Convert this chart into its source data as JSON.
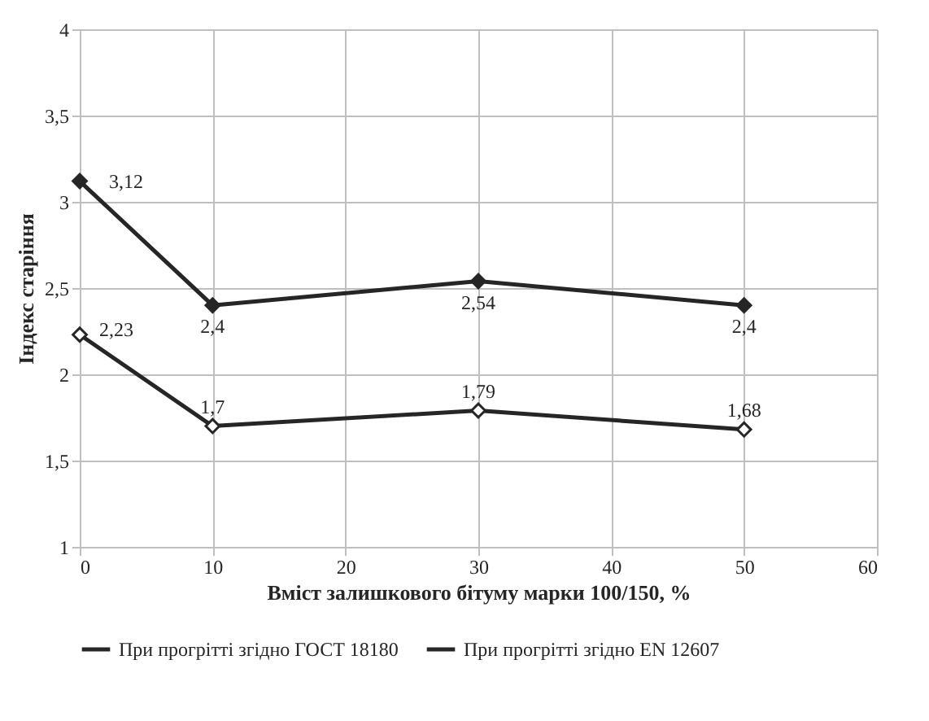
{
  "chart_data": {
    "type": "line",
    "xlabel": "Вміст  залишкового бітуму марки 100/150, %",
    "ylabel": "Індекс старіння",
    "x": [
      0,
      10,
      30,
      50
    ],
    "series": [
      {
        "name": "При прогрітті згідно ГОСТ 18180",
        "color": "#262626",
        "values": [
          2.23,
          1.7,
          1.79,
          1.68
        ],
        "value_labels": [
          "2,23",
          "1,7",
          "1,79",
          "1,68"
        ]
      },
      {
        "name": "При прогрітті згідно EN 12607",
        "color": "#262626",
        "values": [
          3.12,
          2.4,
          2.54,
          2.4
        ],
        "value_labels": [
          "3,12",
          "2,4",
          "2,54",
          "2,4"
        ]
      }
    ],
    "xlim": [
      0,
      60
    ],
    "xticks": [
      0,
      10,
      20,
      30,
      40,
      50,
      60
    ],
    "ylim": [
      1,
      4
    ],
    "yticks": [
      1,
      {
        "value": 1.5,
        "label": "1,5"
      },
      2,
      {
        "value": 2.5,
        "label": "2,5"
      },
      3,
      {
        "value": 3.5,
        "label": "3,5"
      },
      4
    ],
    "grid": true,
    "legend": "bottom",
    "marker": "diamond",
    "line_style": "solid"
  }
}
